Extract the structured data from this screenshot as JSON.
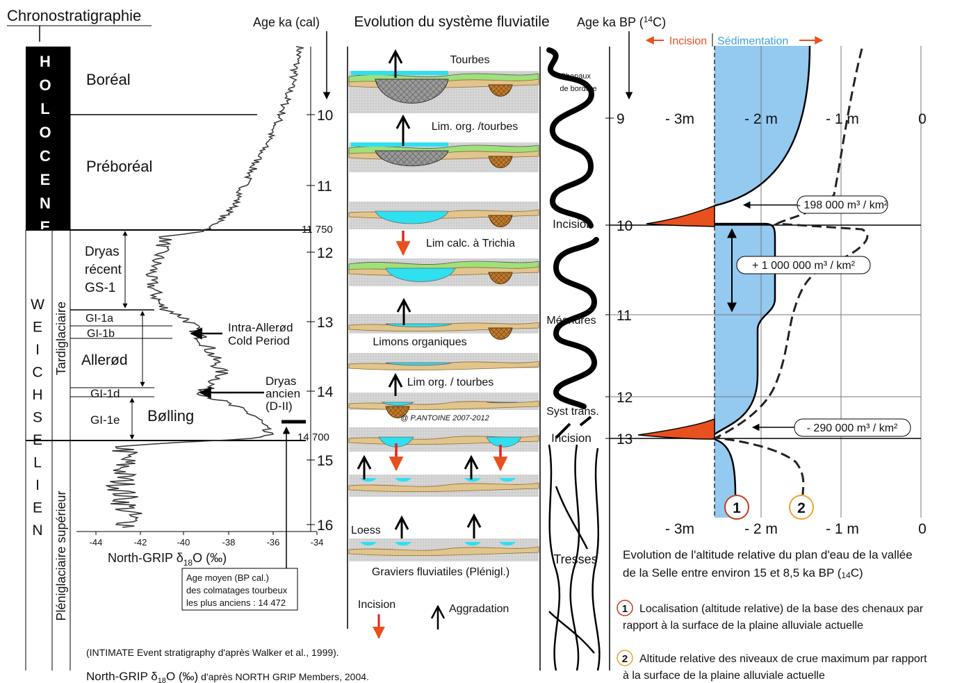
{
  "left": {
    "title": "Chronostratigraphie",
    "holocene": "HOLOCENE",
    "weichselien": "WEICHSELIEN",
    "tardiglaciaire": "Tardiglaciaire",
    "pleniglaciaire": "Pléniglaciaire supérieur",
    "boreal": "Boréal",
    "preboreal": "Préboréal",
    "dryas_recent": [
      "Dryas",
      "récent",
      "GS-1"
    ],
    "gi_1a": "GI-1a",
    "gi_1b": "GI-1b",
    "allerod": "Allerød",
    "gi_1d": "GI-1d",
    "gi_1e": "GI-1e",
    "bolling": "Bølling",
    "intra_allerod": [
      "Intra-Allerød",
      "Cold Period"
    ],
    "dryas_ancien": [
      "Dryas",
      "ancien",
      "(D-II)"
    ],
    "age_axis_title": "Age ka (cal)",
    "age_ticks": [
      10,
      11,
      12,
      13,
      14,
      15,
      16
    ],
    "age_marks": [
      "11 750",
      "14 700"
    ],
    "d18o_ticks": [
      -44,
      -42,
      -40,
      -38,
      -36,
      -34
    ],
    "d18o_label": [
      "North-GRIP δ",
      "18",
      "O (‰)"
    ],
    "peat_note": [
      "Age moyen (BP cal.)",
      "des colmatages tourbeux",
      "les plus anciens : 14 472"
    ],
    "source_intimate": "(INTIMATE Event stratigraphy d'après Walker et al., 1999).",
    "source_grip": [
      "North-GRIP δ",
      "18",
      "O (‰)",
      " d'après NORTH GRIP Members, 2004."
    ]
  },
  "middle": {
    "title": "Evolution du système fluviatile",
    "labels": [
      "Tourbes",
      "Lim. org. /tourbes",
      "Lim calc. à Trichia",
      "Limons organiques",
      "Lim org. / tourbes",
      "@ P.ANTOINE 2007-2012",
      "Loess",
      "Graviers fluviatiles (Plénigl.)"
    ],
    "legend_incision": "Incision",
    "legend_aggradation": "Aggradation",
    "channels": {
      "chenaux": [
        "Chenaux",
        "de bordure"
      ],
      "incision_1": "Incision",
      "meandres": "Méandres",
      "syst_trans": "Syst trans.",
      "incision_2": "Incision",
      "tresses": "Tresses"
    },
    "age_axis_title": [
      "Age ka BP (",
      "14",
      "C)"
    ],
    "age_ticks": [
      9,
      10,
      11,
      12,
      13
    ]
  },
  "right": {
    "incision": "Incision",
    "sedimentation": "Sédimentation",
    "x_ticks": [
      "- 3m",
      "- 2 m",
      "- 1 m",
      "0"
    ],
    "volumes": [
      "- 198 000 m³ / km²",
      "+ 1 000 000 m³ / km²",
      "- 290 000 m³ / km²"
    ],
    "markers": [
      1,
      2
    ],
    "caption": {
      "line1": "Evolution de l'altitude relative du plan d'eau de la vallée",
      "line2": "de la Selle entre environ 15 et 8,5 ka BP (",
      "sub": "14",
      "end": "C)"
    },
    "legend": [
      [
        "Localisation (altitude relative) de la base des chenaux par",
        "rapport à la surface de la plaine alluviale actuelle"
      ],
      [
        "Altitude relative des niveaux de crue maximum par rapport",
        "à la surface de la plaine alluviale actuelle"
      ]
    ]
  }
}
